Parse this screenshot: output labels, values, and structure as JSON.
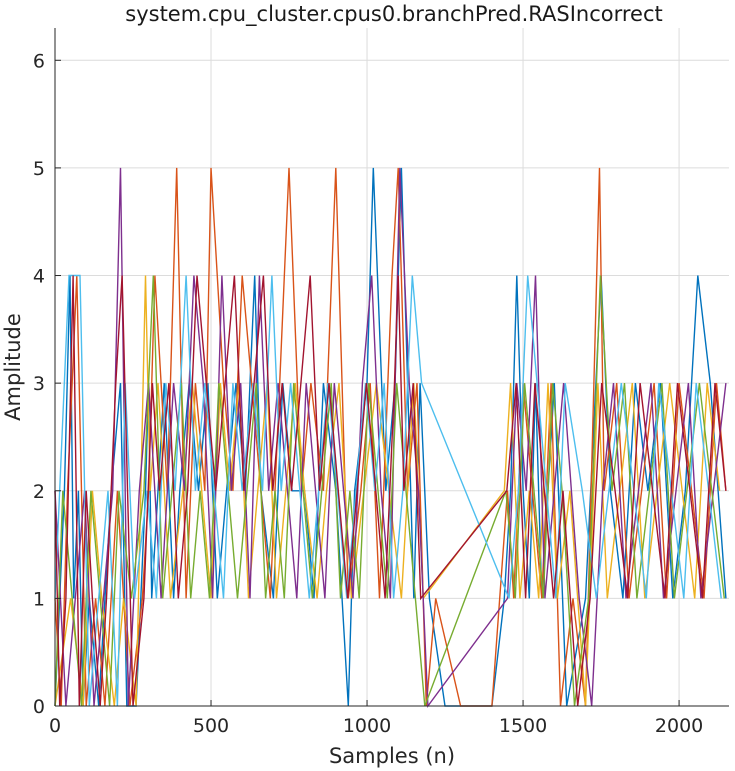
{
  "chart_data": {
    "type": "line",
    "title": "system.cpu_cluster.cpus0.branchPred.RASIncorrect",
    "xlabel": "Samples (n)",
    "ylabel": "Amplitude",
    "xlim": [
      0,
      2160
    ],
    "ylim": [
      0,
      6.3
    ],
    "xticks": [
      0,
      500,
      1000,
      1500,
      2000
    ],
    "yticks": [
      0,
      1,
      2,
      3,
      4,
      5,
      6
    ],
    "grid": true,
    "legend": "none",
    "colors": [
      "#0072bd",
      "#d95319",
      "#edb120",
      "#7e2f8e",
      "#77ac30",
      "#4dbeee",
      "#a2142f"
    ],
    "series": [
      {
        "color": "#0072bd",
        "x": [
          0,
          30,
          48,
          60,
          75,
          90,
          110,
          140,
          180,
          210,
          230,
          260,
          290,
          300,
          310,
          330,
          350,
          380,
          400,
          430,
          460,
          490,
          520,
          550,
          580,
          610,
          640,
          660,
          700,
          730,
          760,
          800,
          830,
          860,
          900,
          940,
          960,
          1000,
          1020,
          1060,
          1090,
          1110,
          1150,
          1170,
          1200,
          1250,
          1300,
          1400,
          1440,
          1460,
          1480,
          1500,
          1520,
          1540,
          1560,
          1580,
          1600,
          1640,
          1700,
          1750,
          1780,
          1820,
          1860,
          1900,
          1940,
          1980,
          2020,
          2060,
          2100,
          2150
        ],
        "y": [
          0,
          2,
          4,
          1,
          2,
          0,
          1,
          0,
          2,
          3,
          0,
          0,
          2,
          3,
          1,
          2,
          3,
          1,
          2,
          3,
          2,
          3,
          1,
          2,
          3,
          2,
          4,
          2,
          1,
          3,
          2,
          2,
          1,
          3,
          2,
          0,
          2,
          3,
          5,
          2,
          3,
          5,
          1,
          3,
          1,
          0,
          0,
          0,
          1,
          2,
          4,
          2,
          1,
          3,
          1,
          2,
          3,
          0,
          1,
          4,
          2,
          1,
          3,
          2,
          3,
          1,
          2,
          4,
          3,
          1
        ]
      },
      {
        "color": "#d95319",
        "x": [
          0,
          20,
          40,
          70,
          100,
          130,
          160,
          200,
          240,
          280,
          300,
          320,
          360,
          390,
          420,
          450,
          480,
          500,
          540,
          570,
          600,
          630,
          660,
          690,
          720,
          750,
          790,
          820,
          860,
          900,
          940,
          980,
          1010,
          1040,
          1080,
          1100,
          1130,
          1160,
          1190,
          1220,
          1300,
          1400,
          1450,
          1470,
          1500,
          1530,
          1560,
          1590,
          1620,
          1660,
          1700,
          1745,
          1760,
          1800,
          1840,
          1880,
          1920,
          1960,
          2000,
          2040,
          2080,
          2120,
          2150
        ],
        "y": [
          1,
          0,
          2,
          4,
          0,
          1,
          0,
          2,
          0,
          1,
          2,
          4,
          2,
          5,
          1,
          3,
          2,
          5,
          3,
          2,
          4,
          3,
          2,
          1,
          3,
          5,
          2,
          3,
          2,
          5,
          1,
          2,
          3,
          1,
          4,
          5,
          2,
          3,
          0,
          1,
          0,
          0,
          2,
          1,
          3,
          2,
          1,
          3,
          0,
          1,
          0,
          5,
          2,
          3,
          1,
          2,
          3,
          1,
          3,
          2,
          1,
          3,
          2
        ]
      },
      {
        "color": "#edb120",
        "x": [
          0,
          50,
          90,
          120,
          150,
          190,
          220,
          260,
          290,
          305,
          330,
          370,
          410,
          440,
          470,
          500,
          530,
          560,
          590,
          620,
          650,
          680,
          710,
          740,
          770,
          800,
          840,
          870,
          910,
          950,
          990,
          1030,
          1070,
          1110,
          1150,
          1180,
          1440,
          1460,
          1490,
          1520,
          1550,
          1580,
          1610,
          1650,
          1700,
          1740,
          1770,
          1810,
          1850,
          1890,
          1930,
          1970,
          2010,
          2050,
          2090,
          2130
        ],
        "y": [
          0,
          1,
          0,
          2,
          1,
          0,
          1,
          0,
          4,
          2,
          3,
          1,
          2,
          3,
          2,
          1,
          3,
          2,
          3,
          1,
          2,
          3,
          1,
          2,
          3,
          2,
          1,
          2,
          3,
          1,
          2,
          3,
          2,
          1,
          3,
          1,
          2,
          3,
          1,
          2,
          1,
          3,
          1,
          2,
          0,
          3,
          1,
          2,
          3,
          1,
          2,
          3,
          2,
          1,
          3,
          2
        ]
      },
      {
        "color": "#7e2f8e",
        "x": [
          0,
          35,
          65,
          95,
          125,
          155,
          185,
          210,
          235,
          270,
          300,
          340,
          380,
          415,
          445,
          475,
          505,
          535,
          565,
          595,
          625,
          655,
          685,
          715,
          745,
          775,
          805,
          835,
          865,
          895,
          925,
          955,
          985,
          1015,
          1045,
          1075,
          1105,
          1135,
          1165,
          1195,
          1450,
          1480,
          1510,
          1540,
          1570,
          1600,
          1630,
          1680,
          1720,
          1755,
          1790,
          1830,
          1870,
          1910,
          1950,
          1990,
          2030,
          2070,
          2110,
          2150
        ],
        "y": [
          2,
          0,
          1,
          2,
          0,
          1,
          2,
          5,
          0,
          2,
          3,
          1,
          3,
          2,
          4,
          3,
          1,
          4,
          2,
          3,
          1,
          4,
          2,
          3,
          2,
          1,
          3,
          2,
          1,
          3,
          2,
          1,
          3,
          4,
          2,
          1,
          5,
          3,
          2,
          0,
          1,
          3,
          2,
          4,
          1,
          2,
          3,
          1,
          0,
          2,
          3,
          1,
          2,
          3,
          1,
          2,
          3,
          1,
          2,
          3
        ]
      },
      {
        "color": "#77ac30",
        "x": [
          0,
          25,
          55,
          85,
          115,
          145,
          175,
          205,
          245,
          285,
          315,
          345,
          375,
          405,
          435,
          465,
          495,
          525,
          555,
          585,
          615,
          645,
          675,
          705,
          735,
          765,
          795,
          825,
          855,
          885,
          915,
          945,
          975,
          1005,
          1035,
          1065,
          1095,
          1125,
          1155,
          1185,
          1445,
          1475,
          1505,
          1535,
          1565,
          1595,
          1625,
          1665,
          1710,
          1748,
          1785,
          1825,
          1865,
          1905,
          1945,
          1985,
          2025,
          2065,
          2105,
          2145
        ],
        "y": [
          0,
          2,
          1,
          0,
          2,
          1,
          0,
          2,
          1,
          2,
          4,
          1,
          2,
          3,
          1,
          2,
          1,
          3,
          2,
          1,
          2,
          3,
          1,
          2,
          1,
          3,
          2,
          1,
          2,
          3,
          1,
          2,
          1,
          3,
          2,
          1,
          3,
          2,
          1,
          0,
          2,
          1,
          3,
          2,
          1,
          3,
          2,
          0,
          1,
          4,
          2,
          3,
          1,
          2,
          3,
          1,
          2,
          3,
          2,
          1
        ]
      },
      {
        "color": "#4dbeee",
        "x": [
          0,
          45,
          80,
          110,
          140,
          170,
          200,
          225,
          255,
          295,
          325,
          355,
          385,
          420,
          450,
          480,
          510,
          540,
          570,
          600,
          635,
          665,
          695,
          725,
          755,
          785,
          815,
          845,
          875,
          905,
          935,
          965,
          995,
          1025,
          1055,
          1085,
          1115,
          1145,
          1175,
          1455,
          1485,
          1515,
          1545,
          1575,
          1605,
          1635,
          1690,
          1735,
          1775,
          1815,
          1855,
          1895,
          1935,
          1975,
          2015,
          2055,
          2095,
          2135
        ],
        "y": [
          1,
          4,
          4,
          0,
          1,
          2,
          0,
          3,
          1,
          2,
          1,
          3,
          2,
          4,
          2,
          3,
          2,
          1,
          3,
          2,
          3,
          2,
          4,
          2,
          3,
          2,
          1,
          2,
          3,
          2,
          1,
          2,
          3,
          2,
          3,
          1,
          2,
          4,
          3,
          1,
          2,
          4,
          3,
          2,
          1,
          3,
          2,
          1,
          2,
          3,
          2,
          1,
          3,
          2,
          1,
          3,
          2,
          1
        ]
      },
      {
        "color": "#a2142f",
        "x": [
          0,
          15,
          35,
          58,
          78,
          100,
          120,
          145,
          165,
          195,
          215,
          250,
          285,
          312,
          335,
          365,
          395,
          425,
          455,
          485,
          515,
          545,
          575,
          605,
          638,
          668,
          698,
          728,
          758,
          788,
          818,
          848,
          878,
          908,
          938,
          968,
          998,
          1028,
          1058,
          1088,
          1100,
          1118,
          1148,
          1172,
          1448,
          1478,
          1508,
          1538,
          1568,
          1598,
          1628,
          1675,
          1715,
          1752,
          1795,
          1835,
          1875,
          1915,
          1955,
          1995,
          2035,
          2075,
          2115,
          2150
        ],
        "y": [
          2,
          0,
          1,
          4,
          0,
          2,
          1,
          0,
          1,
          3,
          4,
          0,
          1,
          3,
          2,
          3,
          1,
          2,
          4,
          3,
          2,
          3,
          4,
          2,
          3,
          4,
          2,
          3,
          2,
          3,
          4,
          2,
          3,
          2,
          1,
          2,
          3,
          2,
          1,
          3,
          4,
          2,
          3,
          1,
          2,
          3,
          1,
          3,
          2,
          1,
          2,
          0,
          1,
          3,
          2,
          1,
          3,
          2,
          1,
          3,
          2,
          1,
          3,
          2
        ]
      }
    ]
  }
}
